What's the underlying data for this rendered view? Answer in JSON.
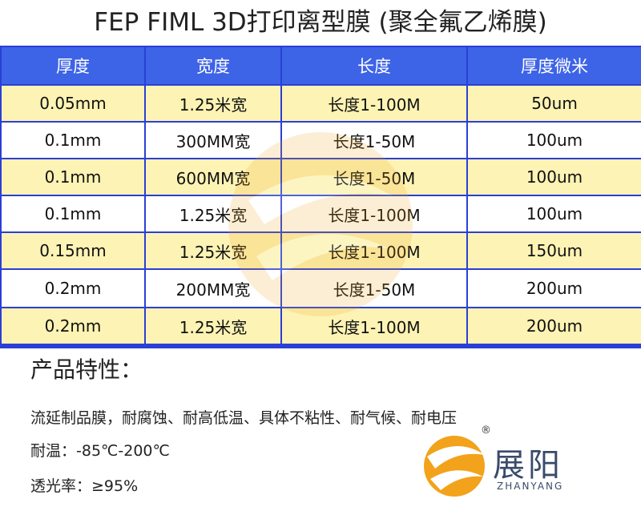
{
  "header": {
    "title": "FEP FIML  3D打印离型膜 (聚全氟乙烯膜)"
  },
  "table": {
    "columns": [
      "厚度",
      "宽度",
      "长度",
      "厚度微米"
    ],
    "rows": [
      [
        "0.05mm",
        "1.25米宽",
        "长度1-100M",
        "50um"
      ],
      [
        "0.1mm",
        "300MM宽",
        "长度1-50M",
        "100um"
      ],
      [
        "0.1mm",
        "600MM宽",
        "长度1-50M",
        "100um"
      ],
      [
        "0.1mm",
        "1.25米宽",
        "长度1-100M",
        "100um"
      ],
      [
        "0.15mm",
        "1.25米宽",
        "长度1-100M",
        "150um"
      ],
      [
        "0.2mm",
        "200MM宽",
        "长度1-50M",
        "200um"
      ],
      [
        "0.2mm",
        "1.25米宽",
        "长度1-100M",
        "200um"
      ]
    ]
  },
  "features": {
    "heading": "产品特性：",
    "lines": [
      "流延制品膜，耐腐蚀、耐高低温、具体不粘性、耐气候、耐电压",
      "耐温：-85℃-200℃",
      "透光率：≥95%"
    ]
  },
  "logo": {
    "name": "展阳",
    "pinyin": "ZHANYANG",
    "mark": "®"
  }
}
